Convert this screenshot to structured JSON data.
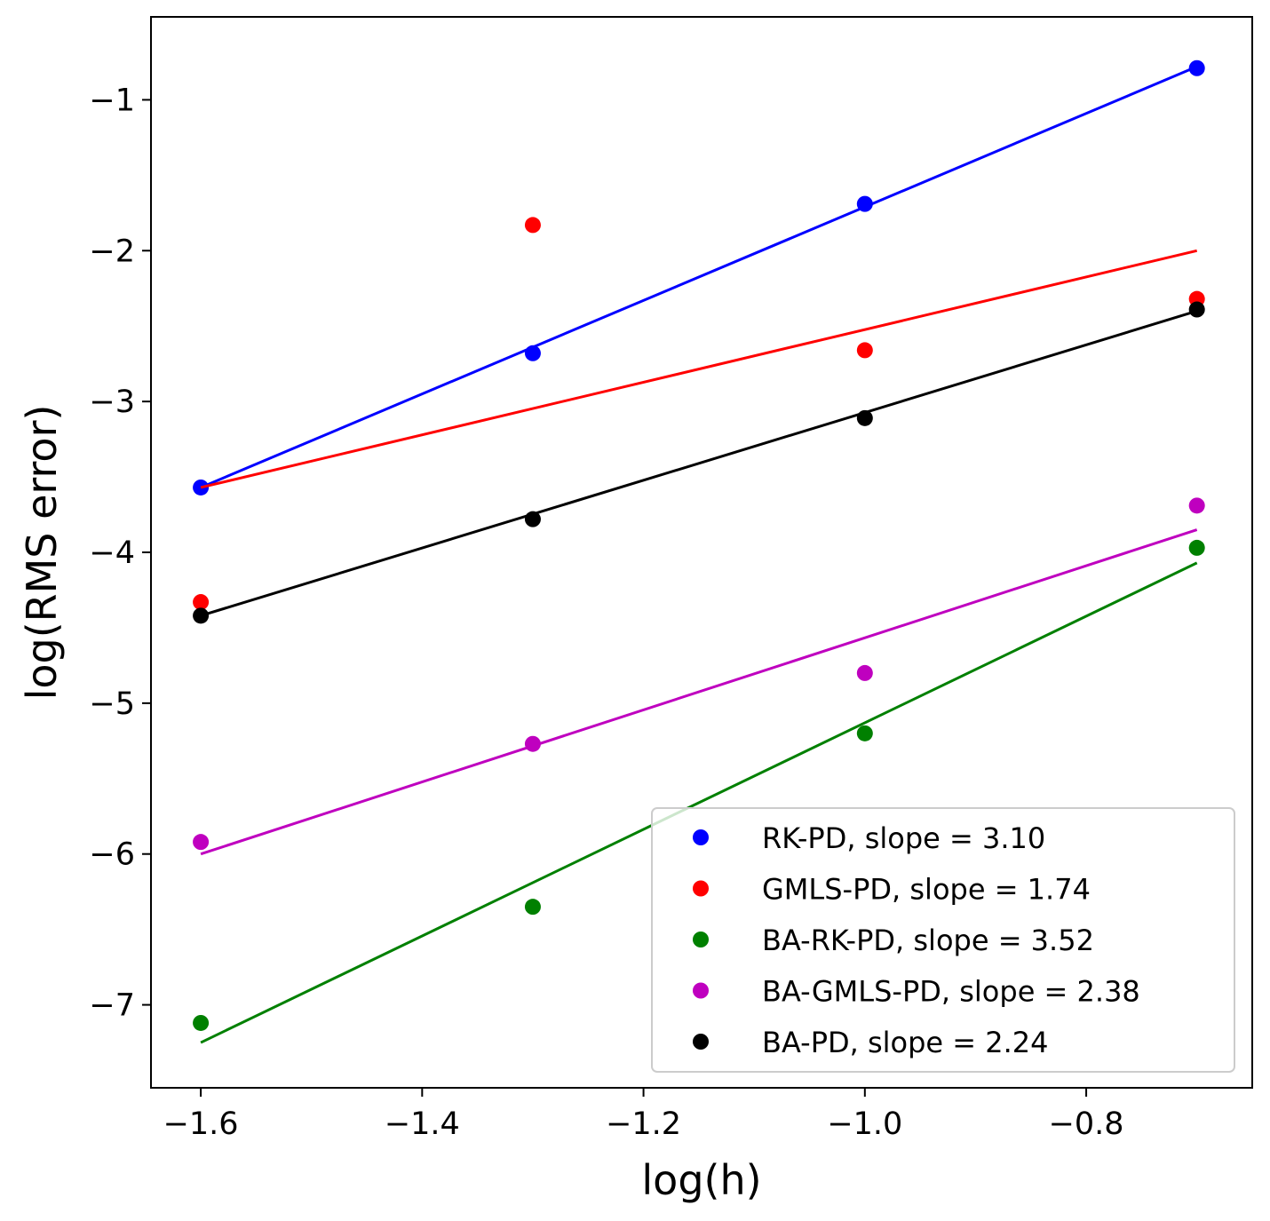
{
  "chart_data": {
    "type": "scatter",
    "title": "",
    "xlabel": "log(h)",
    "ylabel": "log(RMS error)",
    "xlim": [
      -1.645,
      -0.65
    ],
    "ylim": [
      -7.55,
      -0.45
    ],
    "xticks": [
      -1.6,
      -1.4,
      -1.2,
      -1.0,
      -0.8
    ],
    "xtick_labels": [
      "−1.6",
      "−1.4",
      "−1.2",
      "−1.0",
      "−0.8"
    ],
    "yticks": [
      -7,
      -6,
      -5,
      -4,
      -3,
      -2,
      -1
    ],
    "ytick_labels": [
      "−7",
      "−6",
      "−5",
      "−4",
      "−3",
      "−2",
      "−1"
    ],
    "grid": false,
    "legend_position": "lower-right",
    "series": [
      {
        "name": "RK-PD, slope = 3.10",
        "color": "#0000ff",
        "x": [
          -1.6,
          -1.3,
          -1.0,
          -0.7
        ],
        "y": [
          -3.57,
          -2.68,
          -1.69,
          -0.79
        ],
        "fit_line": {
          "x": [
            -1.6,
            -0.7
          ],
          "y": [
            -3.57,
            -0.78
          ]
        }
      },
      {
        "name": "GMLS-PD, slope = 1.74",
        "color": "#ff0000",
        "x": [
          -1.6,
          -1.3,
          -1.0,
          -0.7
        ],
        "y": [
          -4.33,
          -1.83,
          -2.66,
          -2.32
        ],
        "fit_line": {
          "x": [
            -1.6,
            -0.7
          ],
          "y": [
            -3.57,
            -2.0
          ]
        }
      },
      {
        "name": "BA-RK-PD, slope = 3.52",
        "color": "#008000",
        "x": [
          -1.6,
          -1.3,
          -1.0,
          -0.7
        ],
        "y": [
          -7.12,
          -6.35,
          -5.2,
          -3.97
        ],
        "fit_line": {
          "x": [
            -1.6,
            -0.7
          ],
          "y": [
            -7.25,
            -4.07
          ]
        }
      },
      {
        "name": "BA-GMLS-PD, slope = 2.38",
        "color": "#bf00bf",
        "x": [
          -1.6,
          -1.3,
          -1.0,
          -0.7
        ],
        "y": [
          -5.92,
          -5.27,
          -4.8,
          -3.69
        ],
        "fit_line": {
          "x": [
            -1.6,
            -0.7
          ],
          "y": [
            -6.0,
            -3.85
          ]
        }
      },
      {
        "name": "BA-PD, slope = 2.24",
        "color": "#000000",
        "x": [
          -1.6,
          -1.3,
          -1.0,
          -0.7
        ],
        "y": [
          -4.42,
          -3.78,
          -3.11,
          -2.39
        ],
        "fit_line": {
          "x": [
            -1.6,
            -0.7
          ],
          "y": [
            -4.42,
            -2.4
          ]
        }
      }
    ]
  }
}
